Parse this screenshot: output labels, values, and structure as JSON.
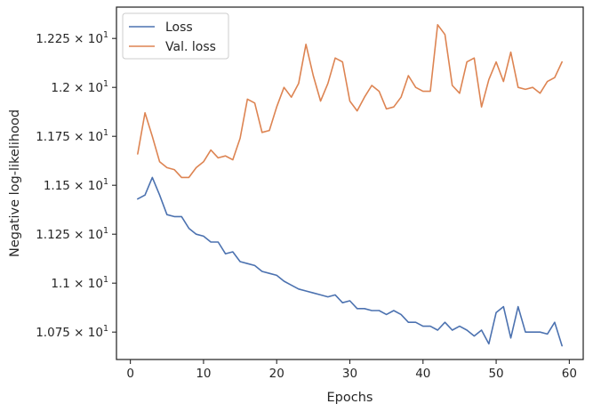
{
  "chart_data": {
    "type": "line",
    "title": "",
    "xlabel": "Epochs",
    "ylabel": "Negative log-likelihood",
    "xlim": [
      -1.9,
      61.9
    ],
    "ylim": [
      10.61,
      12.41
    ],
    "xticks": [
      0,
      10,
      20,
      30,
      40,
      50,
      60
    ],
    "yticks": [
      10.75,
      11.0,
      11.25,
      11.5,
      11.75,
      12.0,
      12.25
    ],
    "ytick_labels": [
      {
        "mantissa": "1.075",
        "exp": "1"
      },
      {
        "mantissa": "1.1",
        "exp": "1"
      },
      {
        "mantissa": "1.125",
        "exp": "1"
      },
      {
        "mantissa": "1.15",
        "exp": "1"
      },
      {
        "mantissa": "1.175",
        "exp": "1"
      },
      {
        "mantissa": "1.2",
        "exp": "1"
      },
      {
        "mantissa": "1.225",
        "exp": "1"
      }
    ],
    "legend_position": "upper-left",
    "grid": false,
    "x": [
      1,
      2,
      3,
      4,
      5,
      6,
      7,
      8,
      9,
      10,
      11,
      12,
      13,
      14,
      15,
      16,
      17,
      18,
      19,
      20,
      21,
      22,
      23,
      24,
      25,
      26,
      27,
      28,
      29,
      30,
      31,
      32,
      33,
      34,
      35,
      36,
      37,
      38,
      39,
      40,
      41,
      42,
      43,
      44,
      45,
      46,
      47,
      48,
      49,
      50,
      51,
      52,
      53,
      54,
      55,
      56,
      57,
      58,
      59
    ],
    "series": [
      {
        "name": "Loss",
        "color": "#4c72b0",
        "values": [
          11.43,
          11.45,
          11.54,
          11.45,
          11.35,
          11.34,
          11.34,
          11.28,
          11.25,
          11.24,
          11.21,
          11.21,
          11.15,
          11.16,
          11.11,
          11.1,
          11.09,
          11.06,
          11.05,
          11.04,
          11.01,
          10.99,
          10.97,
          10.96,
          10.95,
          10.94,
          10.93,
          10.94,
          10.9,
          10.91,
          10.87,
          10.87,
          10.86,
          10.86,
          10.84,
          10.86,
          10.84,
          10.8,
          10.8,
          10.78,
          10.78,
          10.76,
          10.8,
          10.76,
          10.78,
          10.76,
          10.73,
          10.76,
          10.69,
          10.85,
          10.88,
          10.72,
          10.88,
          10.75,
          10.75,
          10.75,
          10.74,
          10.8,
          10.68
        ]
      },
      {
        "name": "Val. loss",
        "color": "#dd8452",
        "values": [
          11.66,
          11.87,
          11.75,
          11.62,
          11.59,
          11.58,
          11.54,
          11.54,
          11.59,
          11.62,
          11.68,
          11.64,
          11.65,
          11.63,
          11.74,
          11.94,
          11.92,
          11.77,
          11.78,
          11.9,
          12.0,
          11.95,
          12.02,
          12.22,
          12.06,
          11.93,
          12.02,
          12.15,
          12.13,
          11.93,
          11.88,
          11.95,
          12.01,
          11.98,
          11.89,
          11.9,
          11.95,
          12.06,
          12.0,
          11.98,
          11.98,
          12.32,
          12.27,
          12.01,
          11.97,
          12.13,
          12.15,
          11.9,
          12.04,
          12.13,
          12.03,
          12.18,
          12.0,
          11.99,
          12.0,
          11.97,
          12.03,
          12.05,
          12.13
        ]
      }
    ]
  }
}
